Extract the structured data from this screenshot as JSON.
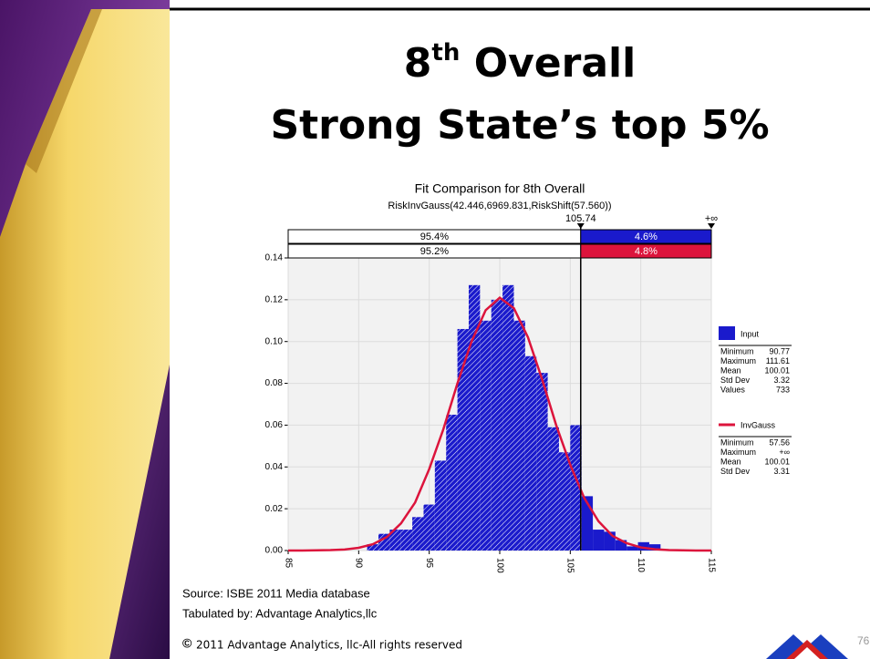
{
  "slide": {
    "title_number": "8",
    "title_sup": "th",
    "title_rest": " Overall",
    "title_line2": "Strong State’s top 5%",
    "source": "Source: ISBE 2011 Media database",
    "tabulated": "Tabulated by: Advantage Analytics,llc",
    "copyright_symbol": "©",
    "copyright": "2011 Advantage Analytics, llc-All rights reserved",
    "page_number": "76"
  },
  "chart_data": {
    "type": "histogram",
    "title": "Fit Comparison for 8th Overall",
    "subtitle": "RiskInvGauss(42.446,6969.831,RiskShift(57.560))",
    "name": "Input",
    "color": "#1a1acc",
    "bins": [
      90.6,
      91.4,
      92.2,
      93.0,
      93.8,
      94.6,
      95.4,
      96.2,
      97.0,
      97.8,
      98.6,
      99.4,
      100.2,
      101.0,
      101.8,
      102.6,
      103.4,
      104.2,
      105.0,
      105.8,
      106.6,
      107.4,
      108.2,
      109.0,
      109.8,
      110.6,
      111.4
    ],
    "values": [
      0.003,
      0.008,
      0.01,
      0.01,
      0.016,
      0.022,
      0.043,
      0.065,
      0.106,
      0.127,
      0.11,
      0.12,
      0.127,
      0.11,
      0.093,
      0.085,
      0.059,
      0.047,
      0.06,
      0.026,
      0.01,
      0.009,
      0.005,
      0.002,
      0.004,
      0.003
    ],
    "fit": {
      "name": "InvGauss",
      "color": "#dc143c",
      "x": [
        85,
        86,
        87,
        88,
        89,
        90,
        91,
        92,
        93,
        94,
        95,
        96,
        97,
        98,
        99,
        100,
        101,
        102,
        103,
        104,
        105,
        106,
        107,
        108,
        109,
        110,
        111,
        112,
        113,
        114,
        115
      ],
      "values": [
        0.0,
        0.0,
        0.0001,
        0.0002,
        0.0005,
        0.0013,
        0.003,
        0.0065,
        0.013,
        0.023,
        0.039,
        0.058,
        0.08,
        0.1,
        0.115,
        0.121,
        0.116,
        0.102,
        0.082,
        0.06,
        0.041,
        0.025,
        0.014,
        0.007,
        0.0035,
        0.0015,
        0.0006,
        0.0002,
        0.0001,
        0.0,
        0.0
      ]
    },
    "delimiter": 105.74,
    "upper_label": "+∞",
    "input_split": {
      "values": [
        95.4,
        4.6
      ],
      "value_labels": [
        "95.4%",
        "4.6%"
      ]
    },
    "fit_split": {
      "values": [
        95.2,
        4.8
      ],
      "value_labels": [
        "95.2%",
        "4.8%"
      ]
    },
    "xlim": [
      85,
      115
    ],
    "xticks": [
      85,
      90,
      95,
      100,
      105,
      110,
      115
    ],
    "ylim": [
      0,
      0.14
    ],
    "yticks": [
      {
        "value": 0,
        "label": "0.00"
      },
      {
        "value": 0.02,
        "label": "0.02"
      },
      {
        "value": 0.04,
        "label": "0.04"
      },
      {
        "value": 0.06,
        "label": "0.06"
      },
      {
        "value": 0.08,
        "label": "0.08"
      },
      {
        "value": 0.1,
        "label": "0.10"
      },
      {
        "value": 0.12,
        "label": "0.12"
      },
      {
        "value": 0.14,
        "label": "0.14"
      }
    ],
    "grid": true,
    "input_stats": [
      {
        "label": "Minimum",
        "value": 90.77
      },
      {
        "label": "Maximum",
        "value": 111.61
      },
      {
        "label": "Mean",
        "value": 100.01
      },
      {
        "label": "Std Dev",
        "value": 3.32
      },
      {
        "label": "Values",
        "value": 733
      }
    ],
    "fit_stats": [
      {
        "label": "Minimum",
        "value": 57.56
      },
      {
        "label": "Maximum",
        "value": "+∞"
      },
      {
        "label": "Mean",
        "value": 100.01
      },
      {
        "label": "Std Dev",
        "value": 3.31
      }
    ]
  }
}
